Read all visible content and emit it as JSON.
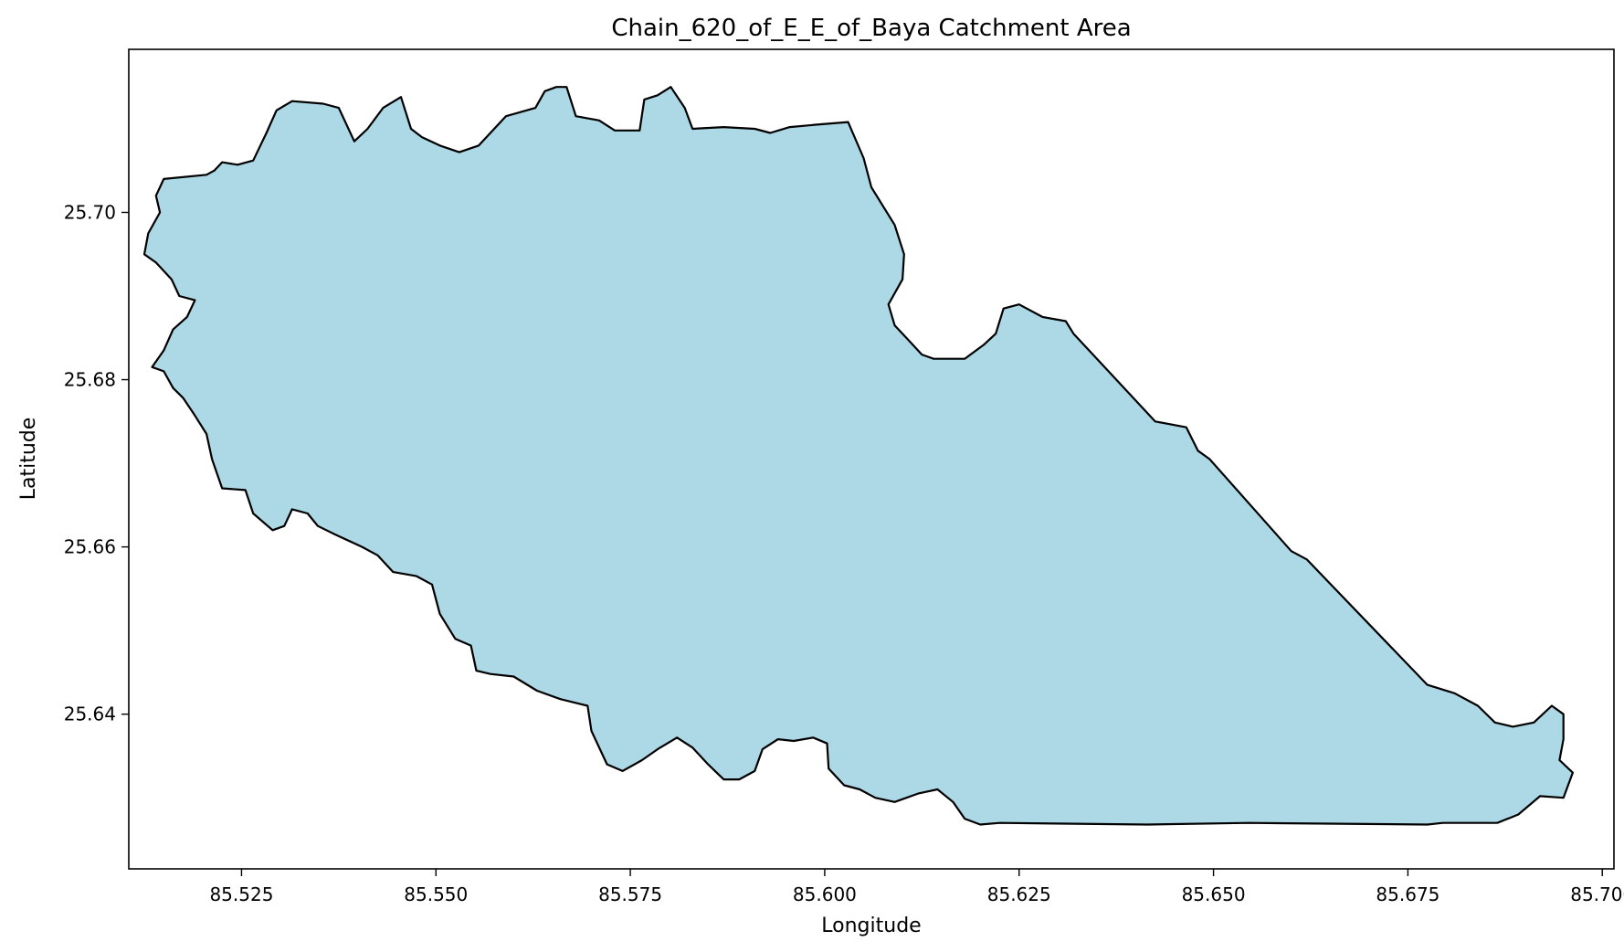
{
  "chart_data": {
    "type": "map",
    "title": "Chain_620_of_E_E_of_Baya Catchment Area",
    "xlabel": "Longitude",
    "ylabel": "Latitude",
    "xlim": [
      85.5105,
      85.7015
    ],
    "ylim": [
      25.6215,
      25.7195
    ],
    "x_ticks": [
      85.525,
      85.55,
      85.575,
      85.6,
      85.625,
      85.65,
      85.675,
      85.7
    ],
    "x_tick_labels": [
      "85.525",
      "85.550",
      "85.575",
      "85.600",
      "85.625",
      "85.650",
      "85.675",
      "85.700"
    ],
    "y_ticks": [
      25.64,
      25.66,
      25.68,
      25.7
    ],
    "y_tick_labels": [
      "25.64",
      "25.66",
      "25.68",
      "25.70"
    ],
    "grid": false,
    "polygon": {
      "fill": "#add8e6",
      "stroke": "#000000",
      "coordinates": [
        [
          85.5205,
          25.7045
        ],
        [
          85.5215,
          25.705
        ],
        [
          85.5225,
          25.706
        ],
        [
          85.5245,
          25.7057
        ],
        [
          85.5265,
          25.7062
        ],
        [
          85.5282,
          25.7095
        ],
        [
          85.5295,
          25.7122
        ],
        [
          85.5315,
          25.7133
        ],
        [
          85.5355,
          25.713
        ],
        [
          85.5375,
          25.7125
        ],
        [
          85.5395,
          25.7085
        ],
        [
          85.5412,
          25.71
        ],
        [
          85.5432,
          25.7125
        ],
        [
          85.5455,
          25.7138
        ],
        [
          85.5468,
          25.71
        ],
        [
          85.5482,
          25.709
        ],
        [
          85.5505,
          25.708
        ],
        [
          85.553,
          25.7072
        ],
        [
          85.5555,
          25.708
        ],
        [
          85.559,
          25.7115
        ],
        [
          85.5628,
          25.7125
        ],
        [
          85.564,
          25.7145
        ],
        [
          85.5655,
          25.715
        ],
        [
          85.5668,
          25.715
        ],
        [
          85.568,
          25.7115
        ],
        [
          85.571,
          25.711
        ],
        [
          85.573,
          25.7098
        ],
        [
          85.5762,
          25.7098
        ],
        [
          85.5768,
          25.7135
        ],
        [
          85.5785,
          25.714
        ],
        [
          85.5802,
          25.715
        ],
        [
          85.582,
          25.7125
        ],
        [
          85.583,
          25.71
        ],
        [
          85.587,
          25.7102
        ],
        [
          85.591,
          25.71
        ],
        [
          85.593,
          25.7095
        ],
        [
          85.5955,
          25.7102
        ],
        [
          85.599,
          25.7105
        ],
        [
          85.603,
          25.7108
        ],
        [
          85.605,
          25.7065
        ],
        [
          85.606,
          25.703
        ],
        [
          85.609,
          25.6985
        ],
        [
          85.6102,
          25.695
        ],
        [
          85.61,
          25.692
        ],
        [
          85.6082,
          25.689
        ],
        [
          85.609,
          25.6865
        ],
        [
          85.611,
          25.6845
        ],
        [
          85.6125,
          25.683
        ],
        [
          85.614,
          25.6825
        ],
        [
          85.618,
          25.6825
        ],
        [
          85.6205,
          25.6842
        ],
        [
          85.622,
          25.6855
        ],
        [
          85.623,
          25.6885
        ],
        [
          85.625,
          25.689
        ],
        [
          85.628,
          25.6875
        ],
        [
          85.631,
          25.687
        ],
        [
          85.632,
          25.6855
        ],
        [
          85.6425,
          25.675
        ],
        [
          85.6465,
          25.6743
        ],
        [
          85.648,
          25.6715
        ],
        [
          85.6495,
          25.6705
        ],
        [
          85.66,
          25.6595
        ],
        [
          85.662,
          25.6585
        ],
        [
          85.6775,
          25.6435
        ],
        [
          85.681,
          25.6425
        ],
        [
          85.684,
          25.641
        ],
        [
          85.6862,
          25.639
        ],
        [
          85.6885,
          25.6385
        ],
        [
          85.6912,
          25.639
        ],
        [
          85.6935,
          25.641
        ],
        [
          85.695,
          25.64
        ],
        [
          85.695,
          25.637
        ],
        [
          85.6945,
          25.6345
        ],
        [
          85.6962,
          25.633
        ],
        [
          85.695,
          25.63
        ],
        [
          85.692,
          25.6302
        ],
        [
          85.6892,
          25.628
        ],
        [
          85.6865,
          25.627
        ],
        [
          85.6795,
          25.627
        ],
        [
          85.6775,
          25.6268
        ],
        [
          85.6545,
          25.627
        ],
        [
          85.6415,
          25.6268
        ],
        [
          85.6225,
          25.627
        ],
        [
          85.62,
          25.6268
        ],
        [
          85.618,
          25.6275
        ],
        [
          85.6165,
          25.6295
        ],
        [
          85.6145,
          25.631
        ],
        [
          85.612,
          25.6305
        ],
        [
          85.609,
          25.6295
        ],
        [
          85.6065,
          25.63
        ],
        [
          85.6045,
          25.631
        ],
        [
          85.6025,
          25.6315
        ],
        [
          85.6005,
          25.6335
        ],
        [
          85.6003,
          25.6365
        ],
        [
          85.5985,
          25.6372
        ],
        [
          85.596,
          25.6368
        ],
        [
          85.594,
          25.637
        ],
        [
          85.592,
          25.6358
        ],
        [
          85.591,
          25.6332
        ],
        [
          85.589,
          25.6322
        ],
        [
          85.587,
          25.6322
        ],
        [
          85.585,
          25.634
        ],
        [
          85.583,
          25.636
        ],
        [
          85.581,
          25.6372
        ],
        [
          85.5785,
          25.6358
        ],
        [
          85.5765,
          25.6345
        ],
        [
          85.574,
          25.6332
        ],
        [
          85.572,
          25.634
        ],
        [
          85.57,
          25.638
        ],
        [
          85.5695,
          25.641
        ],
        [
          85.566,
          25.6418
        ],
        [
          85.563,
          25.6428
        ],
        [
          85.56,
          25.6445
        ],
        [
          85.557,
          25.6448
        ],
        [
          85.5552,
          25.6452
        ],
        [
          85.5545,
          25.6482
        ],
        [
          85.5525,
          25.649
        ],
        [
          85.5505,
          25.652
        ],
        [
          85.5495,
          25.6555
        ],
        [
          85.5475,
          25.6565
        ],
        [
          85.5445,
          25.657
        ],
        [
          85.5425,
          25.659
        ],
        [
          85.5405,
          25.66
        ],
        [
          85.537,
          25.6615
        ],
        [
          85.5348,
          25.6625
        ],
        [
          85.5335,
          25.664
        ],
        [
          85.5315,
          25.6645
        ],
        [
          85.5305,
          25.6625
        ],
        [
          85.529,
          25.662
        ],
        [
          85.5265,
          25.664
        ],
        [
          85.5255,
          25.6668
        ],
        [
          85.5225,
          25.667
        ],
        [
          85.5212,
          25.6705
        ],
        [
          85.5205,
          25.6735
        ],
        [
          85.5188,
          25.676
        ],
        [
          85.5175,
          25.6778
        ],
        [
          85.5162,
          25.679
        ],
        [
          85.515,
          25.681
        ],
        [
          85.5135,
          25.6815
        ],
        [
          85.515,
          25.6835
        ],
        [
          85.5162,
          25.686
        ],
        [
          85.518,
          25.6875
        ],
        [
          85.519,
          25.6895
        ],
        [
          85.517,
          25.69
        ],
        [
          85.516,
          25.692
        ],
        [
          85.514,
          25.694
        ],
        [
          85.5125,
          25.695
        ],
        [
          85.513,
          25.6975
        ],
        [
          85.5145,
          25.7
        ],
        [
          85.514,
          25.702
        ],
        [
          85.515,
          25.704
        ]
      ]
    }
  }
}
